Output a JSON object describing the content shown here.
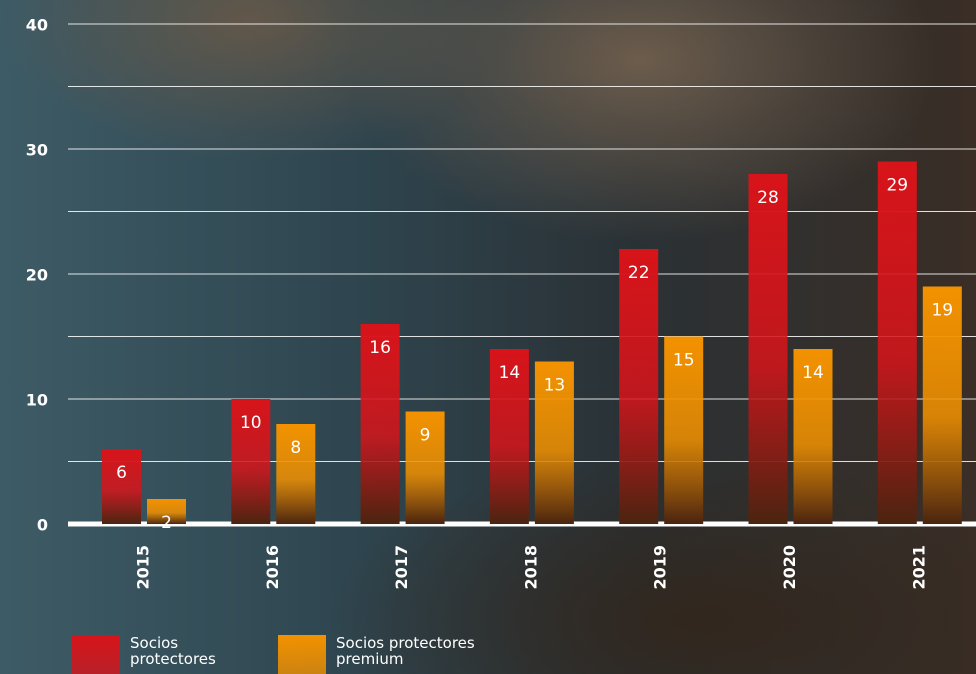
{
  "chart_data": {
    "type": "bar",
    "categories": [
      "2015",
      "2016",
      "2017",
      "2018",
      "2019",
      "2020",
      "2021"
    ],
    "series": [
      {
        "name": "Socios protectores",
        "color": "#d7141a",
        "values": [
          6,
          10,
          16,
          14,
          22,
          28,
          29
        ]
      },
      {
        "name": "Socios protectores premium",
        "color": "#f39200",
        "values": [
          2,
          8,
          9,
          13,
          15,
          14,
          19
        ]
      }
    ],
    "ylim": [
      0,
      40
    ],
    "yticks": [
      0,
      10,
      20,
      30,
      40
    ],
    "minor_yticks": [
      5,
      15,
      25,
      35
    ],
    "grid": true
  }
}
